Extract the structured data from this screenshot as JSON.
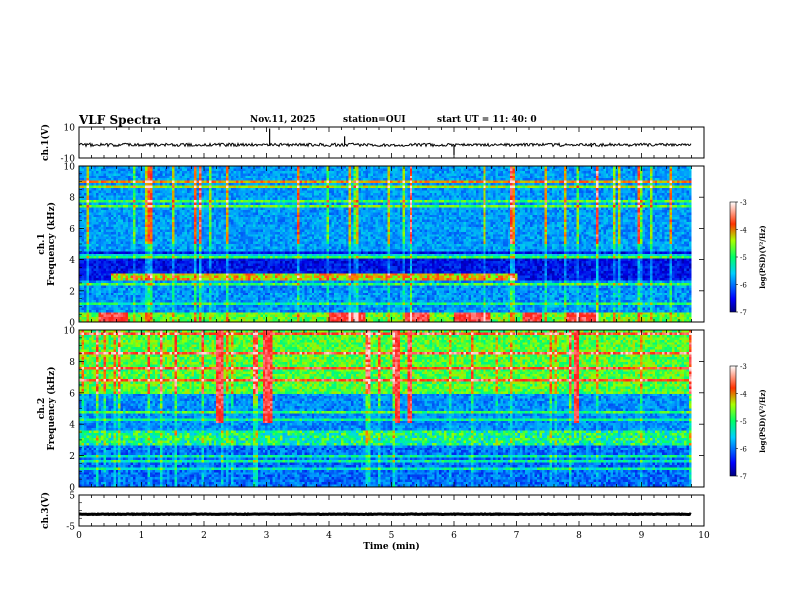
{
  "header": {
    "title": "VLF Spectra",
    "date": "Nov.11, 2025",
    "station": "station=OUI",
    "start_ut": "start  UT =   11: 40: 0"
  },
  "chart_data": [
    {
      "type": "line",
      "name": "ch1-waveform",
      "ylabel": "ch.1(V)",
      "ylim": [
        -10,
        10
      ],
      "ytick_labels": [
        "10",
        "-10"
      ],
      "xlim": [
        0,
        10
      ],
      "baseline": -1.5,
      "spikes": [
        [
          3.05,
          9
        ],
        [
          4.25,
          4
        ],
        [
          6.0,
          -8
        ],
        [
          8.2,
          -3
        ]
      ]
    },
    {
      "type": "heatmap",
      "name": "ch1-spectrogram",
      "ylabel_top": "ch.1",
      "ylabel": "Frequency (kHz)",
      "xlim": [
        0,
        10
      ],
      "data_xmax": 9.8,
      "ylim": [
        0,
        10
      ],
      "ytick_labels": [
        "0",
        "2",
        "4",
        "6",
        "8",
        "10"
      ],
      "colorbar": {
        "label": "log(PSD)(V²/Hz)",
        "range": [
          -7,
          -3
        ],
        "tick_labels": [
          "-3",
          "-4",
          "-5",
          "-6",
          "-7"
        ]
      },
      "features": {
        "dark_band_khz": [
          2.6,
          4.5
        ],
        "intense_band_khz": [
          0,
          0.6
        ],
        "intense_band_segments_min": [
          [
            0.3,
            0.8
          ],
          [
            4.0,
            4.6
          ],
          [
            5.2,
            5.6
          ],
          [
            6.0,
            6.6
          ],
          [
            7.1,
            7.4
          ],
          [
            7.8,
            8.3
          ]
        ]
      }
    },
    {
      "type": "heatmap",
      "name": "ch2-spectrogram",
      "ylabel_top": "ch.2",
      "ylabel": "Frequency (kHz)",
      "xlim": [
        0,
        10
      ],
      "data_xmax": 9.8,
      "ylim": [
        0,
        10
      ],
      "ytick_labels": [
        "0",
        "2",
        "4",
        "6",
        "8",
        "10"
      ],
      "colorbar": {
        "label": "log(PSD)(V²/Hz)",
        "range": [
          -7,
          -3
        ],
        "tick_labels": [
          "-3",
          "-4",
          "-5",
          "-6",
          "-7"
        ]
      },
      "features": {
        "bright_band_khz": [
          6.0,
          10.0
        ],
        "red_stripes_min": [
          2.25,
          3.0,
          3.05,
          5.1,
          5.3,
          7.95
        ]
      }
    },
    {
      "type": "line",
      "name": "ch3-waveform",
      "ylabel": "ch.3(V)",
      "ylim": [
        -5,
        5
      ],
      "ytick_labels": [
        "5",
        "-5"
      ],
      "xlim": [
        0,
        10
      ],
      "xlabel": "Time (min)",
      "xtick_labels": [
        "0",
        "1",
        "2",
        "3",
        "4",
        "5",
        "6",
        "7",
        "8",
        "9",
        "10"
      ],
      "baseline": -1.2
    }
  ]
}
